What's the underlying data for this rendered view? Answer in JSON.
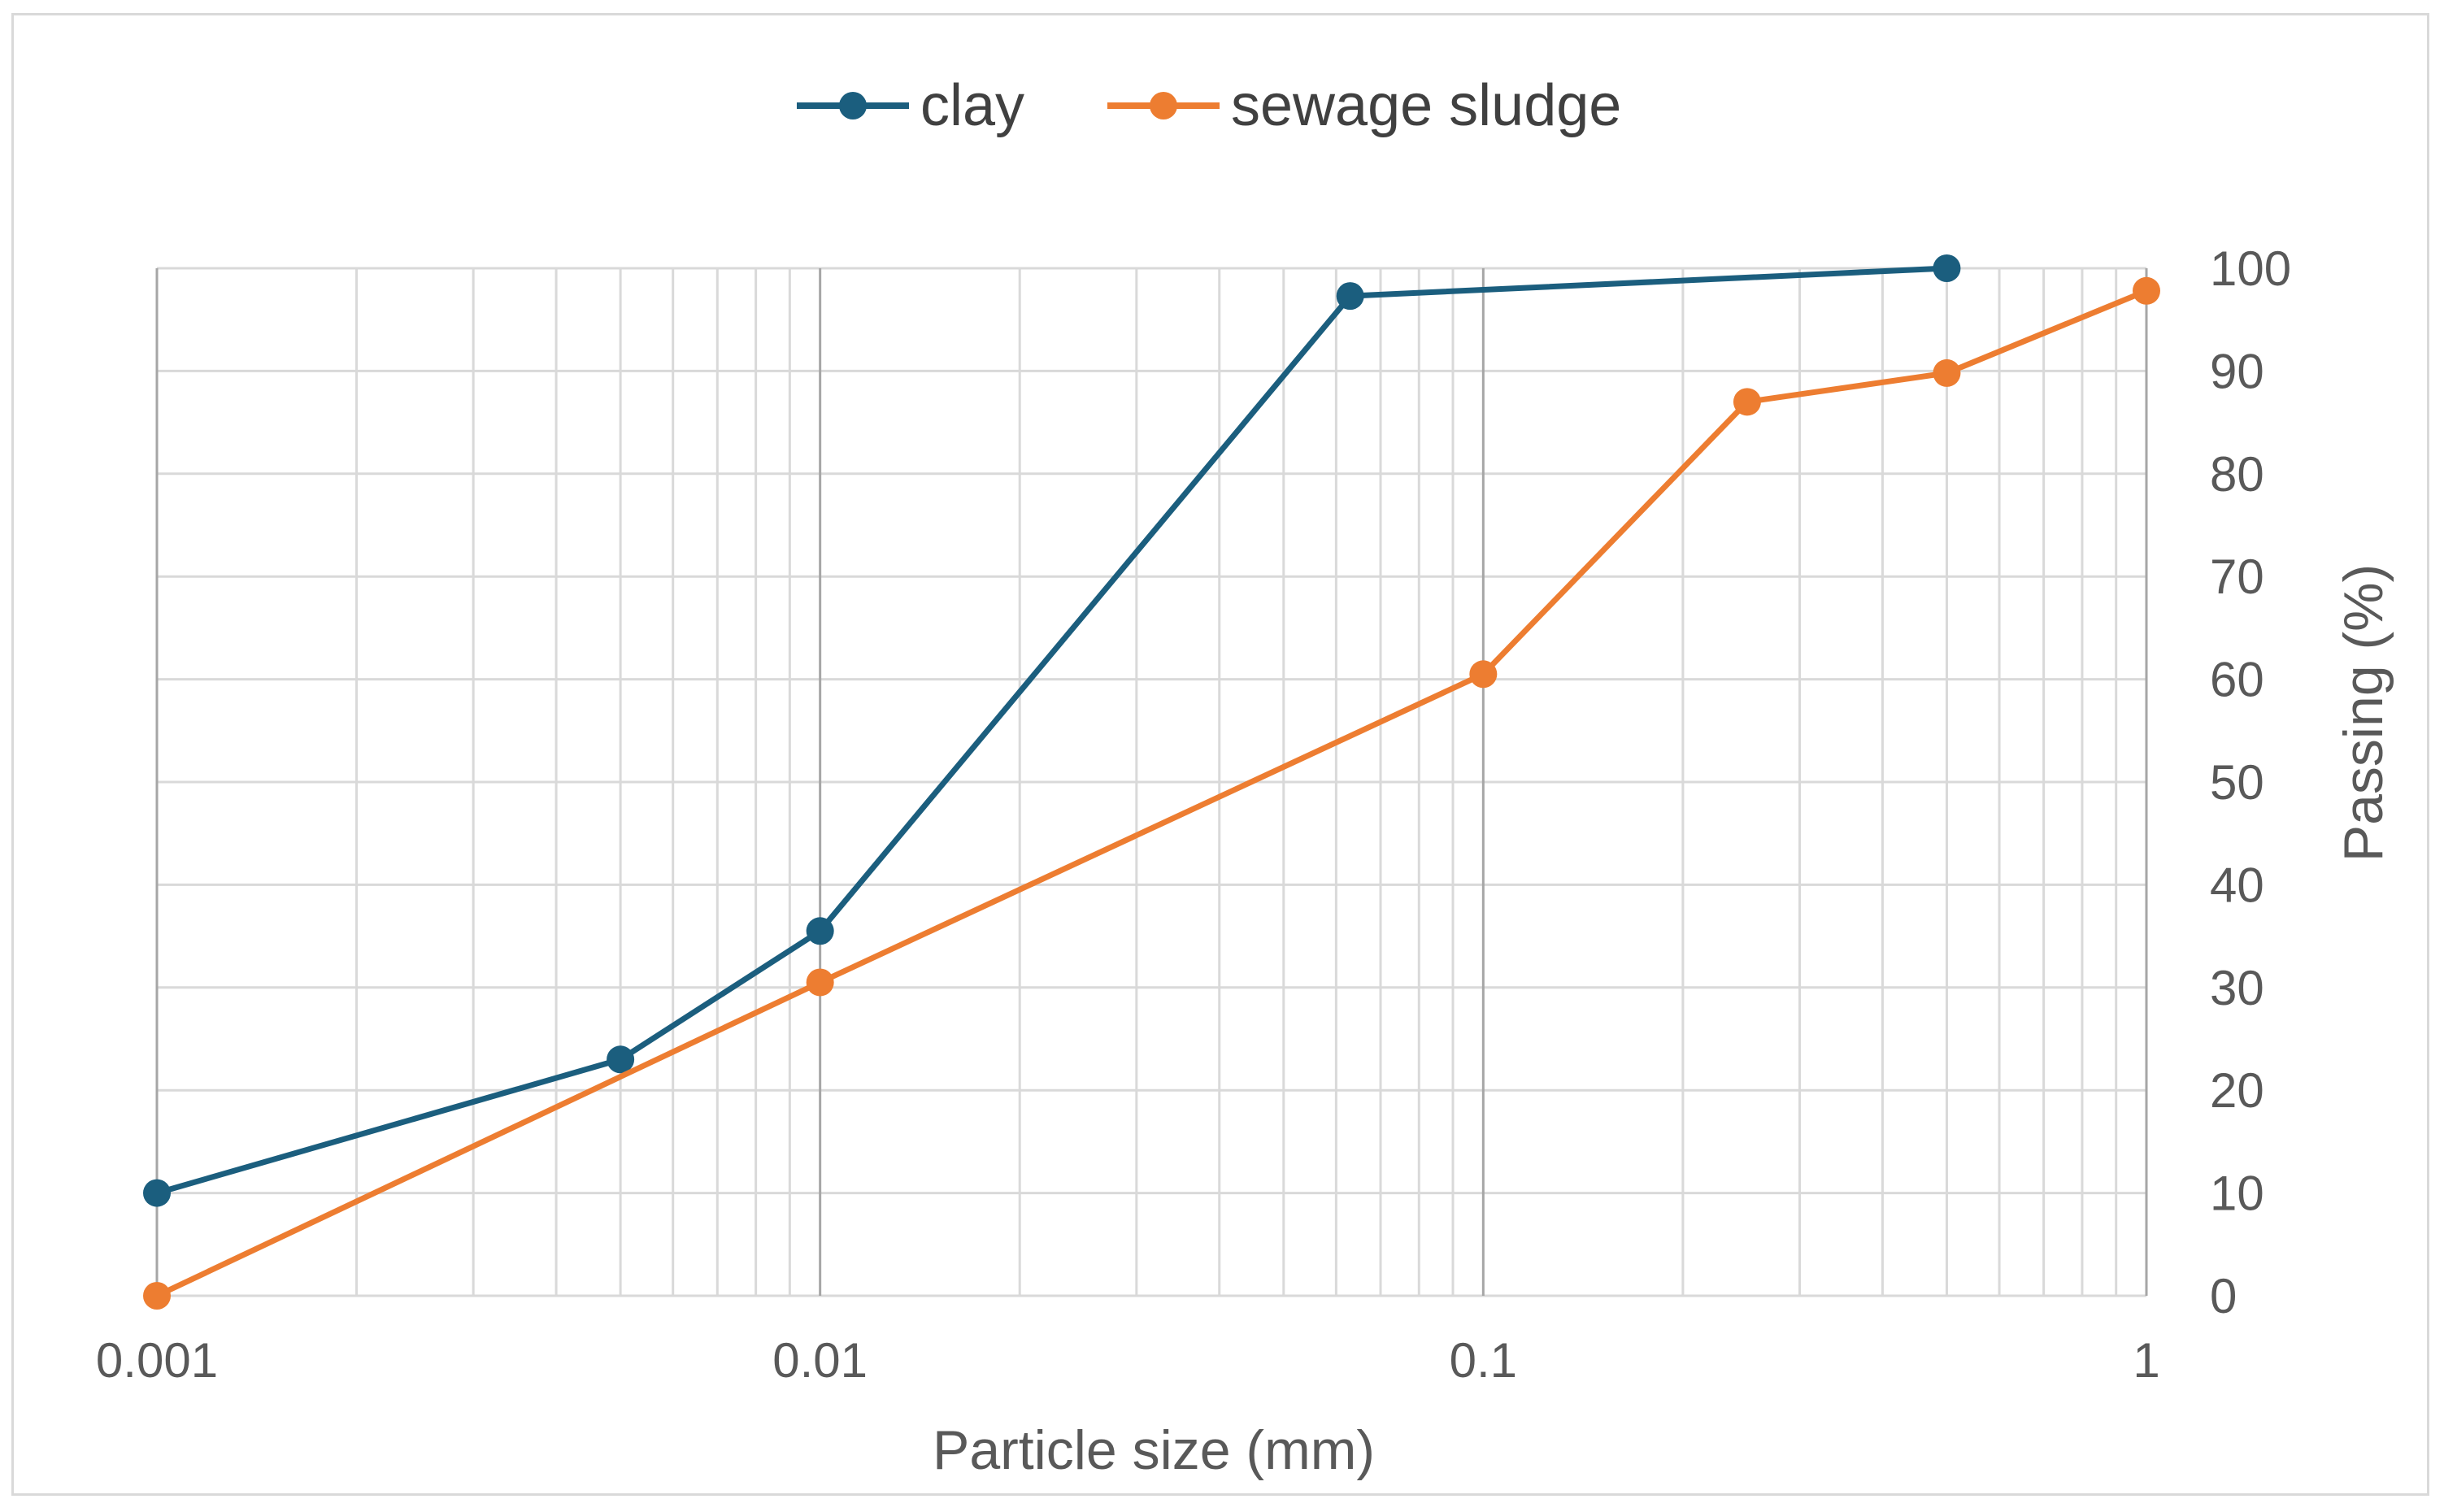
{
  "chart_data": {
    "type": "line",
    "x_scale": "log",
    "xlabel": "Particle size (mm)",
    "ylabel": "Passing (%)",
    "xlim": [
      0.001,
      1
    ],
    "ylim": [
      0,
      100
    ],
    "x_ticks": [
      0.001,
      0.01,
      0.1,
      1
    ],
    "x_tick_labels": [
      "0.001",
      "0.01",
      "0.1",
      "1"
    ],
    "y_ticks": [
      0,
      10,
      20,
      30,
      40,
      50,
      60,
      70,
      80,
      90,
      100
    ],
    "y_tick_labels": [
      "0",
      "10",
      "20",
      "30",
      "40",
      "50",
      "60",
      "70",
      "80",
      "90",
      "100"
    ],
    "y_axis_side": "right",
    "grid": true,
    "legend_position": "top-center",
    "series": [
      {
        "name": "clay",
        "color": "#1b5e7e",
        "x": [
          0.001,
          0.005,
          0.01,
          0.063,
          0.5
        ],
        "y": [
          10,
          23,
          35.5,
          97.3,
          100
        ]
      },
      {
        "name": "sewage sludge",
        "color": "#ed7d31",
        "x": [
          0.001,
          0.01,
          0.1,
          0.25,
          0.5,
          1
        ],
        "y": [
          0,
          30.5,
          60.5,
          87,
          89.8,
          97.8
        ]
      }
    ]
  }
}
